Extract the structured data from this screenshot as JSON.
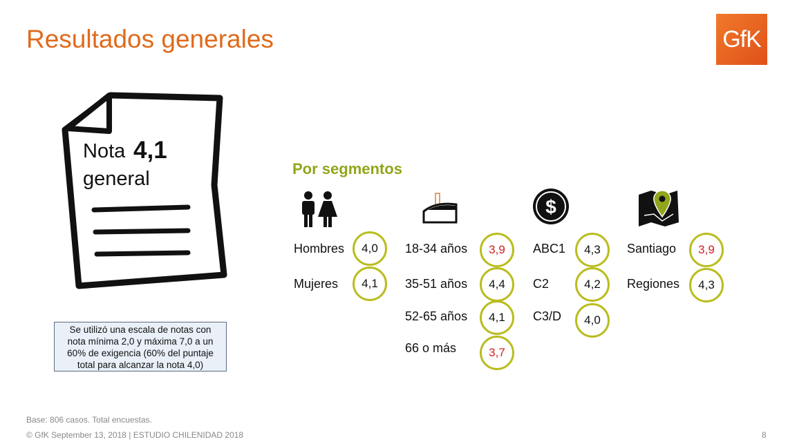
{
  "title": "Resultados generales",
  "logo": "GfK",
  "nota": {
    "label": "Nota",
    "value": "4,1",
    "sub": "general"
  },
  "note_box": [
    "Se utilizó una escala de notas con",
    "nota mínima 2,0 y máxima 7,0 a un",
    "60% de exigencia (60% del puntaje",
    "total para alcanzar la nota 4,0)"
  ],
  "segments_title": "Por segmentos",
  "segments": [
    {
      "icon": "people-icon",
      "items": [
        {
          "label": "Hombres",
          "value": "4,0",
          "low": false
        },
        {
          "label": "Mujeres",
          "value": "4,1",
          "low": false
        }
      ]
    },
    {
      "icon": "cake-icon",
      "items": [
        {
          "label": "18-34 años",
          "value": "3,9",
          "low": true
        },
        {
          "label": "35-51 años",
          "value": "4,4",
          "low": false
        },
        {
          "label": "52-65 años",
          "value": "4,1",
          "low": false
        },
        {
          "label": "66 o más",
          "value": "3,7",
          "low": true
        }
      ]
    },
    {
      "icon": "dollar-coin-icon",
      "items": [
        {
          "label": "ABC1",
          "value": "4,3",
          "low": false
        },
        {
          "label": "C2",
          "value": "4,2",
          "low": false
        },
        {
          "label": "C3/D",
          "value": "4,0",
          "low": false
        }
      ]
    },
    {
      "icon": "map-pin-icon",
      "items": [
        {
          "label": "Santiago",
          "value": "3,9",
          "low": true
        },
        {
          "label": "Regiones",
          "value": "4,3",
          "low": false
        }
      ]
    }
  ],
  "colors": {
    "title": "#e06a1b",
    "accent": "#93a51a",
    "circle": "#b9bd1e",
    "low": "#d11f1f"
  },
  "footer": {
    "base": "Base: 806 casos. Total encuestas.",
    "copyright": "© GfK September 13, 2018 | ESTUDIO CHILENIDAD 2018",
    "page": "8"
  }
}
